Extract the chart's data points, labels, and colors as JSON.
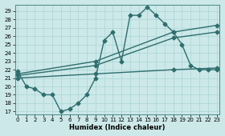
{
  "line1_x": [
    0,
    1,
    2,
    3,
    4,
    5,
    6,
    7,
    8,
    9,
    10,
    11,
    12,
    13,
    14,
    15,
    16,
    17,
    18,
    19,
    20,
    21,
    22,
    23
  ],
  "line1_y": [
    21.8,
    20.0,
    19.7,
    19.0,
    19.0,
    17.0,
    17.3,
    18.0,
    19.0,
    21.0,
    25.5,
    26.5,
    23.0,
    28.5,
    28.5,
    29.5,
    28.5,
    27.5,
    26.5,
    25.0,
    22.5,
    22.0,
    22.0,
    22.0
  ],
  "line2_x": [
    0,
    9,
    18,
    23
  ],
  "line2_y": [
    21.5,
    23.0,
    26.5,
    27.3
  ],
  "line3_x": [
    0,
    9,
    18,
    23
  ],
  "line3_y": [
    21.3,
    22.5,
    25.8,
    26.5
  ],
  "line4_x": [
    0,
    9,
    18,
    23
  ],
  "line4_y": [
    21.0,
    21.5,
    22.0,
    22.2
  ],
  "color": "#2e6e6e",
  "bg_color": "#cce8e8",
  "grid_color": "#b0d8d8",
  "xlabel": "Humidex (Indice chaleur)",
  "xlim": [
    0,
    23
  ],
  "ylim": [
    17,
    29.5
  ],
  "yticks": [
    17,
    18,
    19,
    20,
    21,
    22,
    23,
    24,
    25,
    26,
    27,
    28,
    29
  ],
  "xticks": [
    0,
    1,
    2,
    3,
    4,
    5,
    6,
    7,
    8,
    9,
    10,
    11,
    12,
    13,
    14,
    15,
    16,
    17,
    18,
    19,
    20,
    21,
    22,
    23
  ],
  "marker": "D",
  "markersize": 2.5,
  "linewidth": 1.0
}
